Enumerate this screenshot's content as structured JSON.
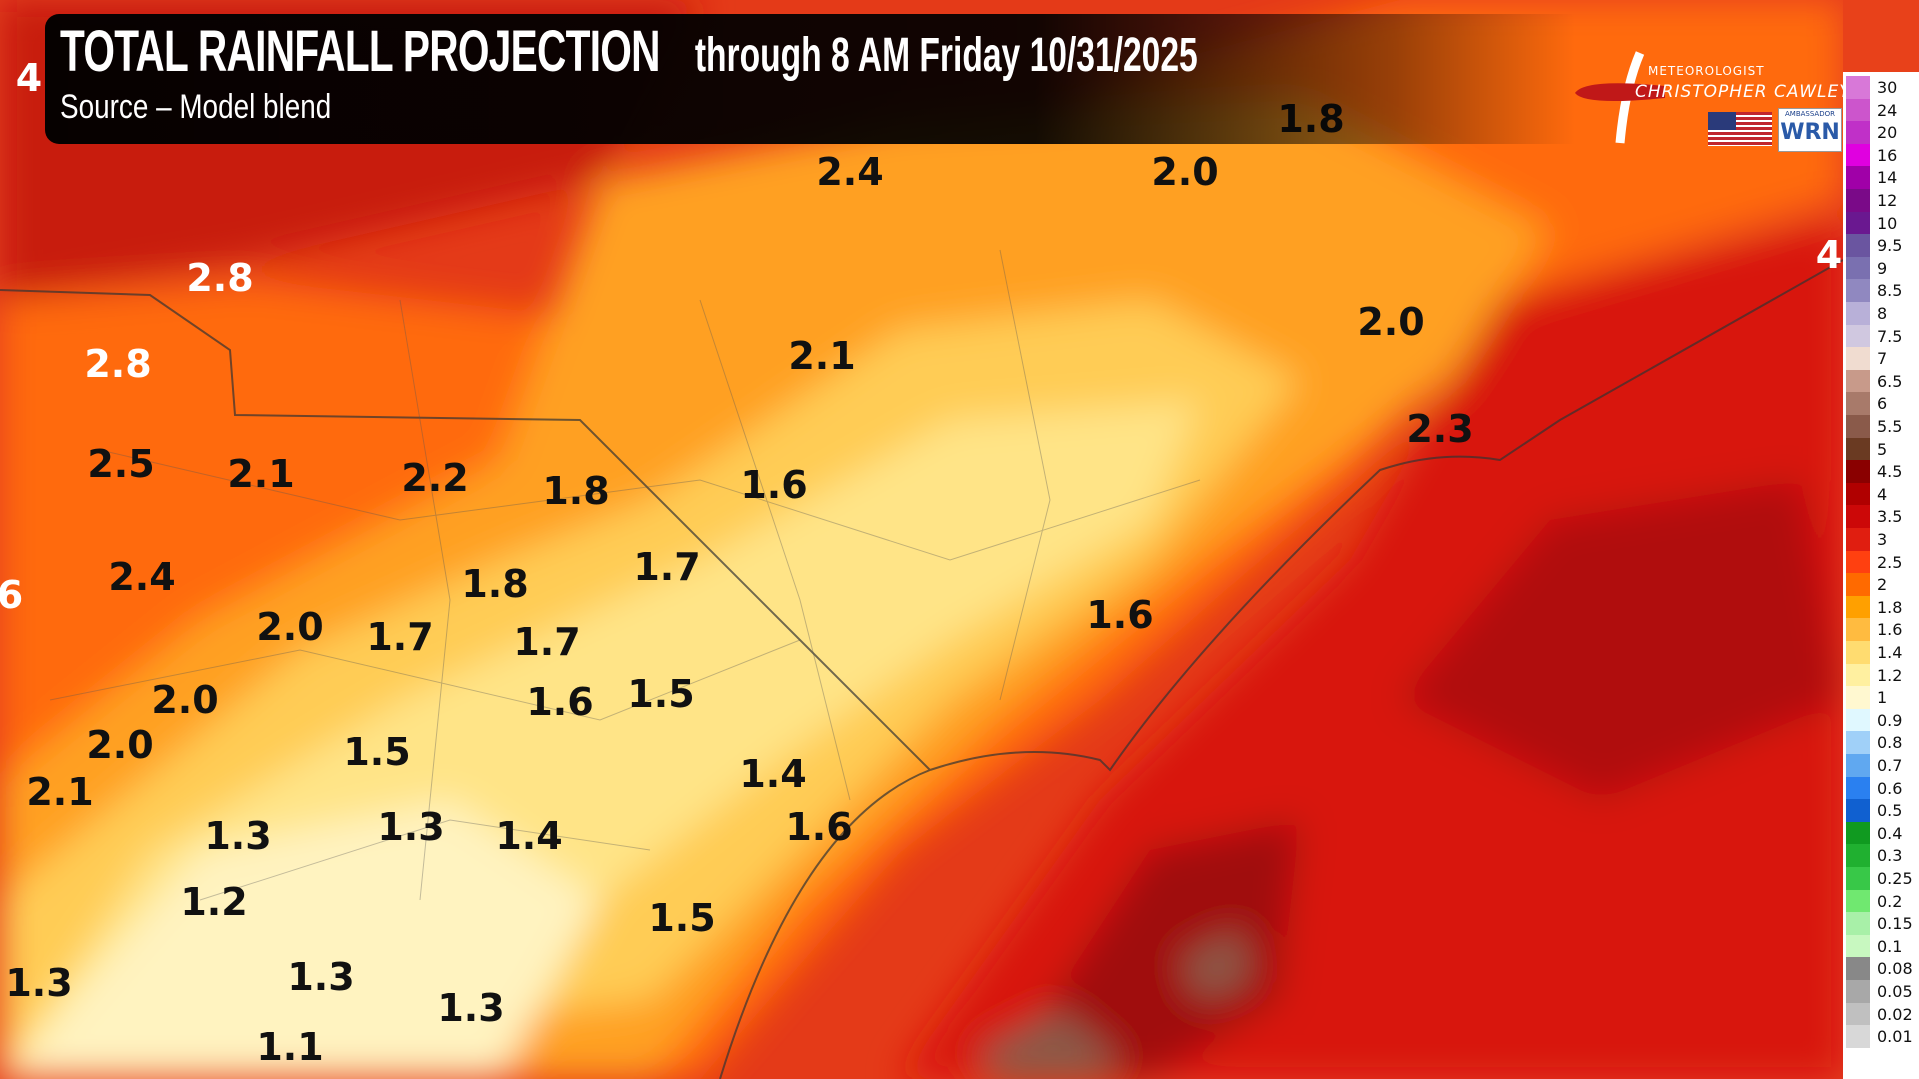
{
  "header": {
    "title": "TOTAL RAINFALL PROJECTION",
    "subtitle": "through 8 AM Friday 10/31/2025",
    "source": "Source – Model blend"
  },
  "logo": {
    "line1": "METEOROLOGIST",
    "line2": "CHRISTOPHER CAWLEY",
    "badge_top": "AMBASSADOR",
    "badge_main": "WRN"
  },
  "map_labels": [
    {
      "v": "2.4",
      "c": "k"
    },
    {
      "v": "2.0",
      "c": "k"
    },
    {
      "v": "1.8",
      "c": "k"
    },
    {
      "v": "2.8",
      "c": "w"
    },
    {
      "v": "2.8",
      "c": "w"
    },
    {
      "v": "2.5",
      "c": "k"
    },
    {
      "v": "2.1",
      "c": "k"
    },
    {
      "v": "2.2",
      "c": "k"
    },
    {
      "v": "1.8",
      "c": "k"
    },
    {
      "v": "2.1",
      "c": "k"
    },
    {
      "v": "1.6",
      "c": "k"
    },
    {
      "v": "2.0",
      "c": "k"
    },
    {
      "v": "2.3",
      "c": "k"
    },
    {
      "v": "2.4",
      "c": "k"
    },
    {
      "v": "1.8",
      "c": "k"
    },
    {
      "v": "1.7",
      "c": "k"
    },
    {
      "v": "2.0",
      "c": "k"
    },
    {
      "v": "1.7",
      "c": "k"
    },
    {
      "v": "1.7",
      "c": "k"
    },
    {
      "v": "1.6",
      "c": "k"
    },
    {
      "v": "1.5",
      "c": "k"
    },
    {
      "v": "1.6",
      "c": "k"
    },
    {
      "v": "2.0",
      "c": "k"
    },
    {
      "v": "2.0",
      "c": "k"
    },
    {
      "v": "2.1",
      "c": "k"
    },
    {
      "v": "1.5",
      "c": "k"
    },
    {
      "v": "1.4",
      "c": "k"
    },
    {
      "v": "1.6",
      "c": "k"
    },
    {
      "v": "1.3",
      "c": "k"
    },
    {
      "v": "1.3",
      "c": "k"
    },
    {
      "v": "1.4",
      "c": "k"
    },
    {
      "v": "1.2",
      "c": "k"
    },
    {
      "v": "1.5",
      "c": "k"
    },
    {
      "v": "1.3",
      "c": "k"
    },
    {
      "v": "1.3",
      "c": "k"
    },
    {
      "v": "1.1",
      "c": "k"
    },
    {
      "v": "1.3",
      "c": "k"
    },
    {
      "v": "4",
      "c": "w"
    },
    {
      "v": "4",
      "c": "w"
    },
    {
      "v": "6",
      "c": "w"
    }
  ],
  "legend": [
    {
      "v": "30",
      "c": "#d878d8"
    },
    {
      "v": "24",
      "c": "#cc55cc"
    },
    {
      "v": "20",
      "c": "#c030c8"
    },
    {
      "v": "16",
      "c": "#e000e0"
    },
    {
      "v": "14",
      "c": "#a000a8"
    },
    {
      "v": "12",
      "c": "#7a0a88"
    },
    {
      "v": "10",
      "c": "#6a1890"
    },
    {
      "v": "9.5",
      "c": "#6a55a0"
    },
    {
      "v": "9",
      "c": "#7a70b0"
    },
    {
      "v": "8.5",
      "c": "#9088c0"
    },
    {
      "v": "8",
      "c": "#b8b0d8"
    },
    {
      "v": "7.5",
      "c": "#d0c8e0"
    },
    {
      "v": "7",
      "c": "#f0dcd0"
    },
    {
      "v": "6.5",
      "c": "#c89a8a"
    },
    {
      "v": "6",
      "c": "#a87a6a"
    },
    {
      "v": "5.5",
      "c": "#8a5a4a"
    },
    {
      "v": "5",
      "c": "#6a3a22"
    },
    {
      "v": "4.5",
      "c": "#8a0000"
    },
    {
      "v": "4",
      "c": "#b00000"
    },
    {
      "v": "3.5",
      "c": "#cc0808"
    },
    {
      "v": "3",
      "c": "#e01e10"
    },
    {
      "v": "2.5",
      "c": "#ff4010"
    },
    {
      "v": "2",
      "c": "#ff6a00"
    },
    {
      "v": "1.8",
      "c": "#ffa000"
    },
    {
      "v": "1.6",
      "c": "#ffbb40"
    },
    {
      "v": "1.4",
      "c": "#ffdc70"
    },
    {
      "v": "1.2",
      "c": "#fff0a0"
    },
    {
      "v": "1",
      "c": "#fff8d0"
    },
    {
      "v": "0.9",
      "c": "#e0f8ff"
    },
    {
      "v": "0.8",
      "c": "#a0d0f8"
    },
    {
      "v": "0.7",
      "c": "#60a8f0"
    },
    {
      "v": "0.6",
      "c": "#2a80f0"
    },
    {
      "v": "0.5",
      "c": "#1060d0"
    },
    {
      "v": "0.4",
      "c": "#109a20"
    },
    {
      "v": "0.3",
      "c": "#20b030"
    },
    {
      "v": "0.25",
      "c": "#38c848"
    },
    {
      "v": "0.2",
      "c": "#70e870"
    },
    {
      "v": "0.15",
      "c": "#a8f0a8"
    },
    {
      "v": "0.1",
      "c": "#c8f8c0"
    },
    {
      "v": "0.08",
      "c": "#888888"
    },
    {
      "v": "0.05",
      "c": "#a8a8a8"
    },
    {
      "v": "0.02",
      "c": "#c0c0c0"
    },
    {
      "v": "0.01",
      "c": "#d8d8d8"
    }
  ]
}
